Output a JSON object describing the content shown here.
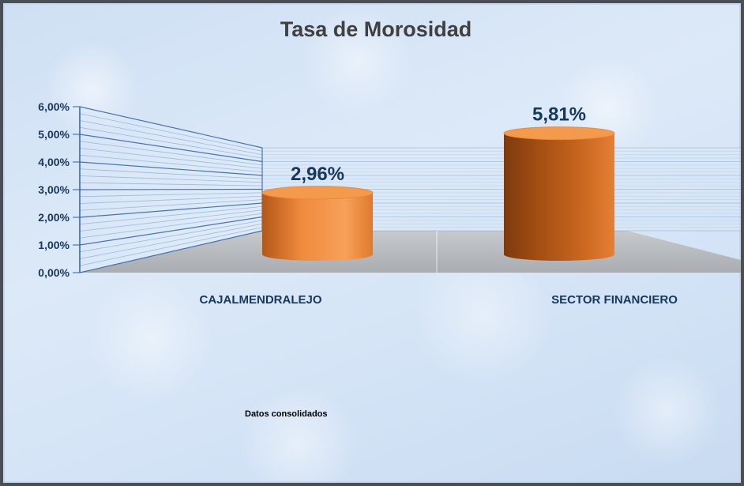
{
  "chart_data": {
    "type": "bar",
    "title": "Tasa de Morosidad",
    "categories": [
      "CAJALMENDRALEJO",
      "SECTOR FINANCIERO"
    ],
    "values": [
      2.96,
      5.81
    ],
    "data_labels": [
      "2,96%",
      "5,81%"
    ],
    "y_ticks": [
      0,
      1,
      2,
      3,
      4,
      5,
      6
    ],
    "y_tick_labels": [
      "0,00%",
      "1,00%",
      "2,00%",
      "3,00%",
      "4,00%",
      "5,00%",
      "6,00%"
    ],
    "ylim": [
      0,
      6
    ],
    "unit": "%",
    "grid": true,
    "legend": "none",
    "style": "3d-cylinder",
    "note": "Datos consolidados"
  },
  "colors": {
    "bar_top": "#f49a4c",
    "bar_light": "#f7a15a",
    "bar_dark": "#a24d12",
    "text": "#17375e",
    "title": "#404040",
    "floor": "#b9bcbf",
    "grid": "#2e5fa8"
  }
}
